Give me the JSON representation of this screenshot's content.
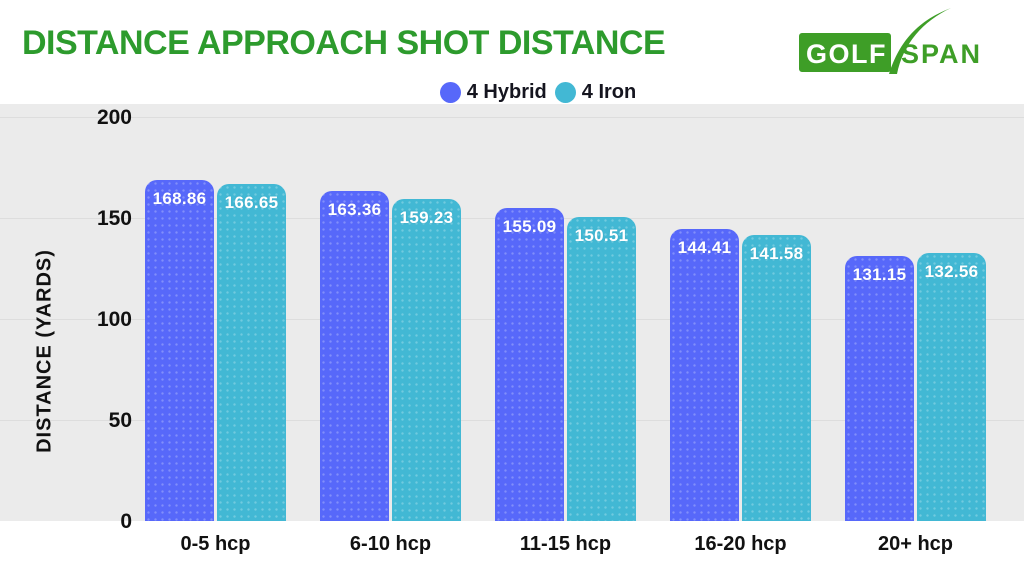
{
  "header": {
    "title": "DISTANCE APPROACH SHOT DISTANCE"
  },
  "logo": {
    "golf_text": "GOLF",
    "span_text": "SPAN",
    "green": "#3e9e27"
  },
  "colors": {
    "title_green": "#2d9b2d",
    "plot_background": "#ebebeb",
    "gridline": "#dddddd",
    "hybrid_blue": "#5768fa",
    "iron_cyan": "#42b8d4",
    "axis_text": "#111111",
    "value_text": "#ffffff"
  },
  "chart_data": {
    "type": "bar",
    "title": "DISTANCE APPROACH SHOT DISTANCE",
    "categories": [
      "0-5 hcp",
      "6-10 hcp",
      "11-15 hcp",
      "16-20 hcp",
      "20+ hcp"
    ],
    "series": [
      {
        "name": "4 Hybrid",
        "color": "#5768fa",
        "values": [
          168.86,
          163.36,
          155.09,
          144.41,
          131.15
        ]
      },
      {
        "name": "4 Iron",
        "color": "#42b8d4",
        "values": [
          166.65,
          159.23,
          150.51,
          141.58,
          132.56
        ]
      }
    ],
    "xlabel": "",
    "ylabel": "DISTANCE (YARDS)",
    "ylim": [
      0,
      200
    ],
    "yticks": [
      0,
      50,
      100,
      150,
      200
    ],
    "grid": true,
    "legend_position": "top-center",
    "value_labels": "inside-top"
  }
}
